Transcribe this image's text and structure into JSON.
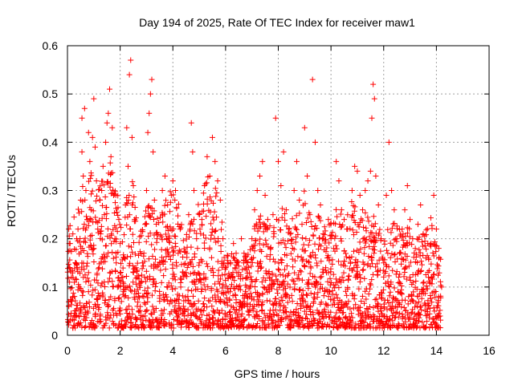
{
  "chart_data": {
    "type": "scatter",
    "title": "Day 194 of 2025, Rate Of TEC Index for receiver maw1",
    "xlabel": "GPS time / hours",
    "ylabel": "ROTI / TECUs",
    "xlim": [
      0,
      16
    ],
    "ylim": [
      0,
      0.6
    ],
    "xticks": [
      "0",
      "2",
      "4",
      "6",
      "8",
      "10",
      "12",
      "14",
      "16"
    ],
    "yticks": [
      "0",
      "0.1",
      "0.2",
      "0.3",
      "0.4",
      "0.5",
      "0.6"
    ],
    "grid": true,
    "marker": "plus",
    "color": "#ff0000",
    "series": [
      {
        "points": [
          [
            0.05,
            0.22
          ],
          [
            0.05,
            0.06
          ],
          [
            0.1,
            0.19
          ],
          [
            0.1,
            0.03
          ],
          [
            0.15,
            0.12
          ],
          [
            0.2,
            0.08
          ],
          [
            0.25,
            0.04
          ],
          [
            0.3,
            0.15
          ],
          [
            0.35,
            0.2
          ],
          [
            0.4,
            0.22
          ],
          [
            0.45,
            0.1
          ],
          [
            0.5,
            0.28
          ],
          [
            0.55,
            0.38
          ],
          [
            0.55,
            0.45
          ],
          [
            0.6,
            0.33
          ],
          [
            0.6,
            0.12
          ],
          [
            0.65,
            0.47
          ],
          [
            0.7,
            0.3
          ],
          [
            0.75,
            0.24
          ],
          [
            0.8,
            0.42
          ],
          [
            0.85,
            0.36
          ],
          [
            0.9,
            0.26
          ],
          [
            0.95,
            0.41
          ],
          [
            1.0,
            0.49
          ],
          [
            1.0,
            0.18
          ],
          [
            1.05,
            0.39
          ],
          [
            1.1,
            0.32
          ],
          [
            1.15,
            0.22
          ],
          [
            1.2,
            0.14
          ],
          [
            1.25,
            0.08
          ],
          [
            1.3,
            0.3
          ],
          [
            1.35,
            0.35
          ],
          [
            1.4,
            0.25
          ],
          [
            1.45,
            0.4
          ],
          [
            1.5,
            0.44
          ],
          [
            1.55,
            0.46
          ],
          [
            1.6,
            0.51
          ],
          [
            1.65,
            0.37
          ],
          [
            1.7,
            0.43
          ],
          [
            1.75,
            0.29
          ],
          [
            1.8,
            0.2
          ],
          [
            1.85,
            0.15
          ],
          [
            1.9,
            0.1
          ],
          [
            1.95,
            0.24
          ],
          [
            2.0,
            0.19
          ],
          [
            2.05,
            0.07
          ],
          [
            2.1,
            0.12
          ],
          [
            2.15,
            0.16
          ],
          [
            2.2,
            0.27
          ],
          [
            2.25,
            0.43
          ],
          [
            2.3,
            0.35
          ],
          [
            2.35,
            0.54
          ],
          [
            2.4,
            0.57
          ],
          [
            2.45,
            0.41
          ],
          [
            2.5,
            0.31
          ],
          [
            2.55,
            0.24
          ],
          [
            2.6,
            0.14
          ],
          [
            2.65,
            0.06
          ],
          [
            2.7,
            0.05
          ],
          [
            2.8,
            0.11
          ],
          [
            2.9,
            0.17
          ],
          [
            3.0,
            0.3
          ],
          [
            3.05,
            0.42
          ],
          [
            3.1,
            0.46
          ],
          [
            3.15,
            0.5
          ],
          [
            3.2,
            0.53
          ],
          [
            3.25,
            0.38
          ],
          [
            3.3,
            0.28
          ],
          [
            3.4,
            0.2
          ],
          [
            3.5,
            0.15
          ],
          [
            3.6,
            0.3
          ],
          [
            3.7,
            0.33
          ],
          [
            3.8,
            0.27
          ],
          [
            3.9,
            0.22
          ],
          [
            4.0,
            0.32
          ],
          [
            4.1,
            0.3
          ],
          [
            4.2,
            0.17
          ],
          [
            4.3,
            0.1
          ],
          [
            4.4,
            0.06
          ],
          [
            4.5,
            0.13
          ],
          [
            4.6,
            0.25
          ],
          [
            4.7,
            0.44
          ],
          [
            4.75,
            0.38
          ],
          [
            4.8,
            0.3
          ],
          [
            4.9,
            0.2
          ],
          [
            5.0,
            0.15
          ],
          [
            5.1,
            0.24
          ],
          [
            5.2,
            0.31
          ],
          [
            5.3,
            0.37
          ],
          [
            5.4,
            0.33
          ],
          [
            5.5,
            0.41
          ],
          [
            5.6,
            0.36
          ],
          [
            5.7,
            0.32
          ],
          [
            5.8,
            0.28
          ],
          [
            5.9,
            0.2
          ],
          [
            6.0,
            0.14
          ],
          [
            6.1,
            0.09
          ],
          [
            6.2,
            0.12
          ],
          [
            6.3,
            0.19
          ],
          [
            6.4,
            0.17
          ],
          [
            6.5,
            0.13
          ],
          [
            6.6,
            0.2
          ],
          [
            6.7,
            0.17
          ],
          [
            6.8,
            0.1
          ],
          [
            6.9,
            0.08
          ],
          [
            7.0,
            0.2
          ],
          [
            7.1,
            0.26
          ],
          [
            7.2,
            0.3
          ],
          [
            7.3,
            0.33
          ],
          [
            7.4,
            0.36
          ],
          [
            7.5,
            0.29
          ],
          [
            7.6,
            0.24
          ],
          [
            7.7,
            0.18
          ],
          [
            7.8,
            0.25
          ],
          [
            7.9,
            0.45
          ],
          [
            8.0,
            0.36
          ],
          [
            8.1,
            0.31
          ],
          [
            8.2,
            0.38
          ],
          [
            8.3,
            0.26
          ],
          [
            8.4,
            0.22
          ],
          [
            8.5,
            0.19
          ],
          [
            8.6,
            0.3
          ],
          [
            8.7,
            0.36
          ],
          [
            8.8,
            0.28
          ],
          [
            8.9,
            0.23
          ],
          [
            9.0,
            0.43
          ],
          [
            9.1,
            0.33
          ],
          [
            9.2,
            0.25
          ],
          [
            9.3,
            0.53
          ],
          [
            9.4,
            0.4
          ],
          [
            9.5,
            0.3
          ],
          [
            9.6,
            0.27
          ],
          [
            9.7,
            0.21
          ],
          [
            9.8,
            0.14
          ],
          [
            9.9,
            0.24
          ],
          [
            10.0,
            0.2
          ],
          [
            10.1,
            0.18
          ],
          [
            10.2,
            0.36
          ],
          [
            10.3,
            0.32
          ],
          [
            10.4,
            0.26
          ],
          [
            10.5,
            0.24
          ],
          [
            10.6,
            0.22
          ],
          [
            10.7,
            0.16
          ],
          [
            10.8,
            0.3
          ],
          [
            10.9,
            0.35
          ],
          [
            11.0,
            0.34
          ],
          [
            11.1,
            0.29
          ],
          [
            11.2,
            0.26
          ],
          [
            11.3,
            0.3
          ],
          [
            11.4,
            0.32
          ],
          [
            11.5,
            0.34
          ],
          [
            11.55,
            0.45
          ],
          [
            11.6,
            0.52
          ],
          [
            11.65,
            0.49
          ],
          [
            11.7,
            0.33
          ],
          [
            11.8,
            0.27
          ],
          [
            11.9,
            0.2
          ],
          [
            12.0,
            0.15
          ],
          [
            12.1,
            0.29
          ],
          [
            12.2,
            0.4
          ],
          [
            12.3,
            0.3
          ],
          [
            12.4,
            0.26
          ],
          [
            12.5,
            0.2
          ],
          [
            12.6,
            0.17
          ],
          [
            12.7,
            0.22
          ],
          [
            12.8,
            0.26
          ],
          [
            12.9,
            0.31
          ],
          [
            13.0,
            0.24
          ],
          [
            13.1,
            0.2
          ],
          [
            13.2,
            0.18
          ],
          [
            13.3,
            0.23
          ],
          [
            13.4,
            0.27
          ],
          [
            13.5,
            0.21
          ],
          [
            13.6,
            0.16
          ],
          [
            13.7,
            0.12
          ],
          [
            13.8,
            0.19
          ],
          [
            13.9,
            0.29
          ],
          [
            14.0,
            0.22
          ],
          [
            14.1,
            0.16
          ],
          [
            14.2,
            0.1
          ]
        ]
      }
    ],
    "density": {
      "x_step": 0.05,
      "start": 0.0,
      "end": 14.2,
      "envelope": [
        [
          0.0,
          0.23
        ],
        [
          0.3,
          0.25
        ],
        [
          0.6,
          0.32
        ],
        [
          0.9,
          0.34
        ],
        [
          1.2,
          0.32
        ],
        [
          1.5,
          0.38
        ],
        [
          1.8,
          0.33
        ],
        [
          2.1,
          0.25
        ],
        [
          2.4,
          0.34
        ],
        [
          2.7,
          0.22
        ],
        [
          3.0,
          0.28
        ],
        [
          3.3,
          0.29
        ],
        [
          3.6,
          0.26
        ],
        [
          3.9,
          0.3
        ],
        [
          4.2,
          0.28
        ],
        [
          4.5,
          0.22
        ],
        [
          4.8,
          0.26
        ],
        [
          5.1,
          0.3
        ],
        [
          5.4,
          0.34
        ],
        [
          5.7,
          0.3
        ],
        [
          6.0,
          0.18
        ],
        [
          6.3,
          0.17
        ],
        [
          6.6,
          0.15
        ],
        [
          6.9,
          0.18
        ],
        [
          7.2,
          0.26
        ],
        [
          7.5,
          0.24
        ],
        [
          7.8,
          0.22
        ],
        [
          8.1,
          0.28
        ],
        [
          8.4,
          0.24
        ],
        [
          8.7,
          0.26
        ],
        [
          9.0,
          0.3
        ],
        [
          9.3,
          0.24
        ],
        [
          9.6,
          0.25
        ],
        [
          9.9,
          0.22
        ],
        [
          10.2,
          0.28
        ],
        [
          10.5,
          0.24
        ],
        [
          10.8,
          0.28
        ],
        [
          11.1,
          0.25
        ],
        [
          11.4,
          0.26
        ],
        [
          11.7,
          0.24
        ],
        [
          12.0,
          0.2
        ],
        [
          12.3,
          0.26
        ],
        [
          12.6,
          0.22
        ],
        [
          12.9,
          0.24
        ],
        [
          13.2,
          0.2
        ],
        [
          13.5,
          0.22
        ],
        [
          13.8,
          0.25
        ],
        [
          14.1,
          0.2
        ],
        [
          14.2,
          0.12
        ]
      ]
    }
  }
}
